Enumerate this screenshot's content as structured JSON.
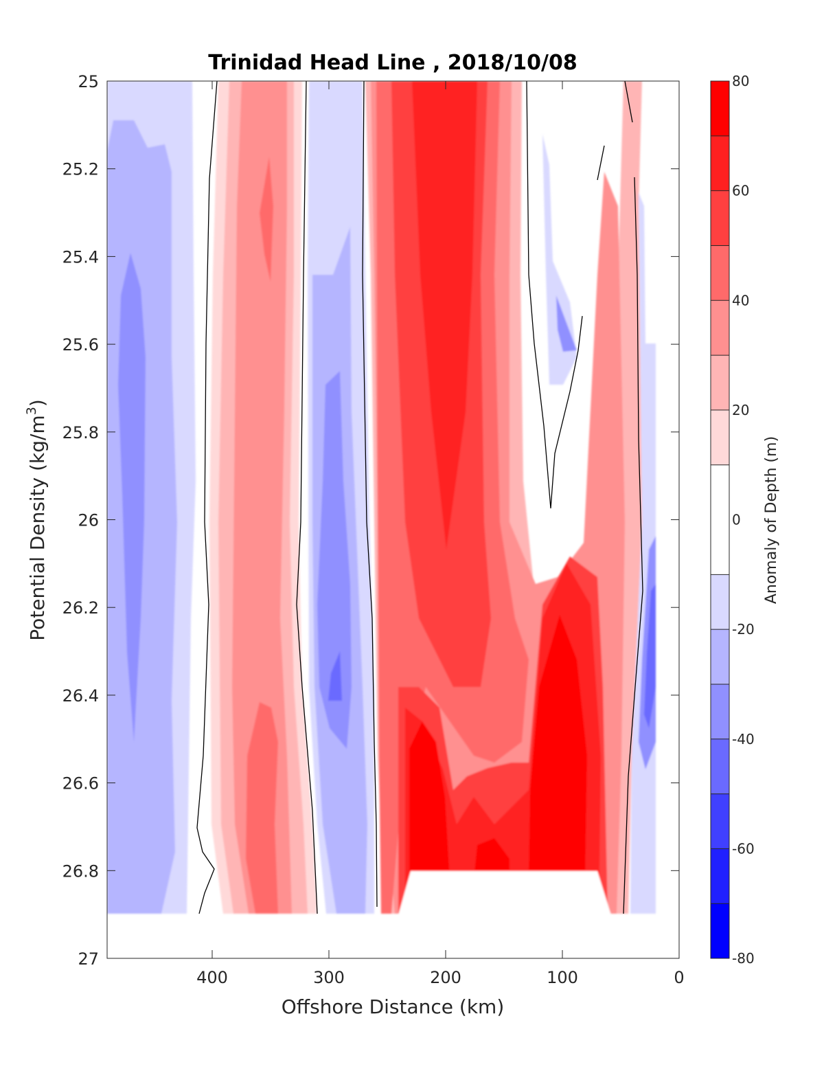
{
  "chart_data": {
    "type": "contour",
    "title": "Trinidad Head Line , 2018/10/08",
    "xlabel": "Offshore Distance (km)",
    "ylabel_main": "Potential Density (kg/m",
    "ylabel_sup": "3",
    "ylabel_close": ")",
    "x_axis": {
      "range": [
        490,
        0
      ],
      "reversed": true,
      "ticks": [
        400,
        300,
        200,
        100,
        0
      ],
      "tick_labels": [
        "400",
        "300",
        "200",
        "100",
        "0"
      ]
    },
    "y_axis": {
      "range": [
        25,
        27
      ],
      "reversed": true,
      "ticks": [
        25,
        25.2,
        25.4,
        25.6,
        25.8,
        26,
        26.2,
        26.4,
        26.6,
        26.8,
        27
      ],
      "tick_labels": [
        "25",
        "25.2",
        "25.4",
        "25.6",
        "25.8",
        "26",
        "26.2",
        "26.4",
        "26.6",
        "26.8",
        "27"
      ]
    },
    "colorbar": {
      "label": "Anomaly of Depth (m)",
      "range": [
        -80,
        80
      ],
      "ticks": [
        80,
        60,
        40,
        20,
        0,
        -20,
        -40,
        -60,
        -80
      ],
      "tick_labels": [
        "80",
        "60",
        "40",
        "20",
        "0",
        "-20",
        "-40",
        "-60",
        "-80"
      ],
      "levels": [
        -80,
        -70,
        -60,
        -50,
        -40,
        -30,
        -20,
        -10,
        10,
        20,
        30,
        40,
        50,
        60,
        70,
        80
      ],
      "level_colors": [
        "#0000ff",
        "#2020ff",
        "#4040ff",
        "#6a6aff",
        "#9090ff",
        "#b5b5ff",
        "#d9d9ff",
        "#ffffff",
        "#ffd9d9",
        "#ffb5b5",
        "#ff9090",
        "#ff6a6a",
        "#ff4040",
        "#ff2020",
        "#ff0000"
      ]
    },
    "anomaly_bands": [
      {
        "x_range": [
          490,
          415
        ],
        "anomaly_m": -20
      },
      {
        "x_range": [
          480,
          440
        ],
        "anomaly_m": -30
      },
      {
        "x_range": [
          475,
          455
        ],
        "anomaly_m": -40
      },
      {
        "x_range": [
          395,
          310
        ],
        "anomaly_m": 20
      },
      {
        "x_range": [
          385,
          320
        ],
        "anomaly_m": 30
      },
      {
        "x_range": [
          360,
          340
        ],
        "anomaly_m": 40
      },
      {
        "x_range": [
          310,
          265
        ],
        "anomaly_m": -20
      },
      {
        "x_range": [
          300,
          270
        ],
        "anomaly_m": -30
      },
      {
        "x_range": [
          290,
          275
        ],
        "anomaly_m": -40
      },
      {
        "x_range": [
          260,
          60
        ],
        "anomaly_m": 30
      },
      {
        "x_range": [
          250,
          160
        ],
        "anomaly_m": 50
      },
      {
        "x_range": [
          235,
          175
        ],
        "anomaly_m": 60
      },
      {
        "x_range": [
          225,
          200
        ],
        "anomaly_m": 80
      },
      {
        "x_range": [
          120,
          75
        ],
        "anomaly_m": 70
      },
      {
        "x_range": [
          115,
          85
        ],
        "anomaly_m": 80
      },
      {
        "x_range": [
          40,
          20
        ],
        "anomaly_m": -40
      }
    ],
    "data_extent": {
      "density_max_outer": 26.9,
      "density_max_center": 26.8
    },
    "zero_contour_lines": 6
  }
}
